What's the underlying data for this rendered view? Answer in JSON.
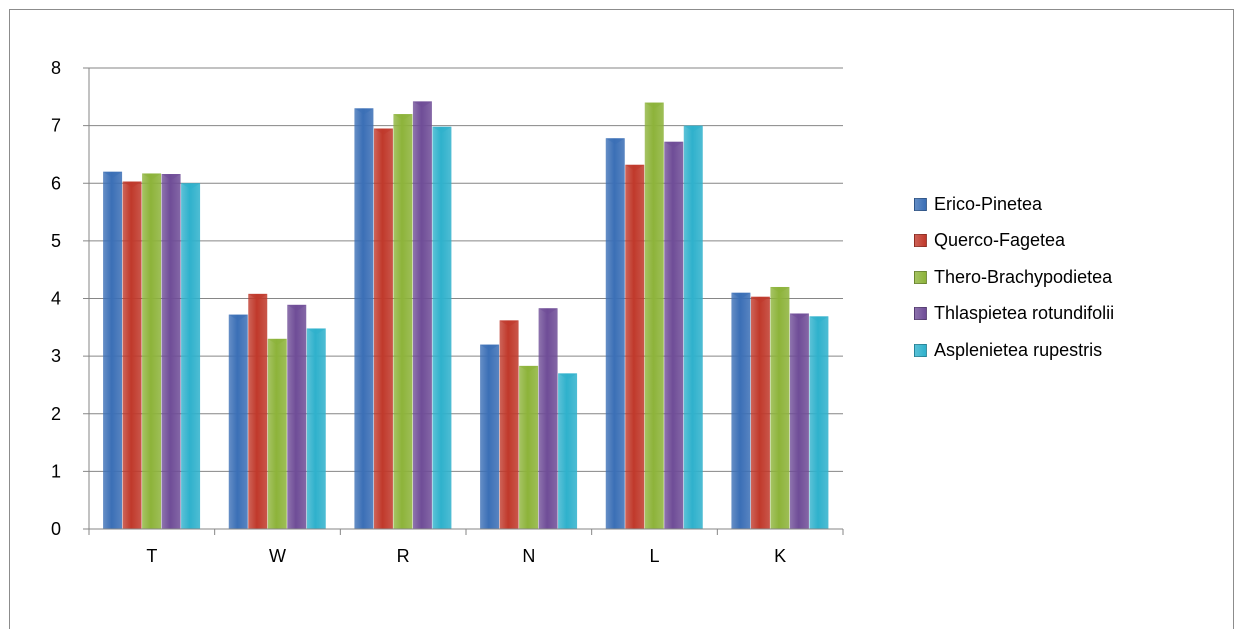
{
  "chart_data": {
    "type": "bar",
    "title": "",
    "xlabel": "",
    "ylabel": "",
    "ylim": [
      0,
      8
    ],
    "yticks": [
      "0",
      "1",
      "2",
      "3",
      "4",
      "5",
      "6",
      "7",
      "8"
    ],
    "grid": true,
    "legend_position": "right",
    "categories": [
      "T",
      "W",
      "R",
      "N",
      "L",
      "K"
    ],
    "series": [
      {
        "name": "Erico-Pinetea",
        "color": "#3b6fb6",
        "values": [
          6.2,
          3.72,
          7.3,
          3.2,
          6.78,
          4.1
        ]
      },
      {
        "name": "Querco-Fagetea",
        "color": "#c0392b",
        "values": [
          6.03,
          4.08,
          6.95,
          3.62,
          6.32,
          4.03
        ]
      },
      {
        "name": "Thero-Brachypodietea",
        "color": "#8db33a",
        "values": [
          6.17,
          3.3,
          7.2,
          2.83,
          7.4,
          4.2
        ]
      },
      {
        "name": "Thlaspietea rotundifolii",
        "color": "#6f4d97",
        "values": [
          6.16,
          3.89,
          7.42,
          3.83,
          6.72,
          3.74
        ]
      },
      {
        "name": "Asplenietea rupestris",
        "color": "#2fb1cc",
        "values": [
          6.0,
          3.48,
          6.98,
          2.7,
          7.0,
          3.69
        ]
      }
    ]
  }
}
